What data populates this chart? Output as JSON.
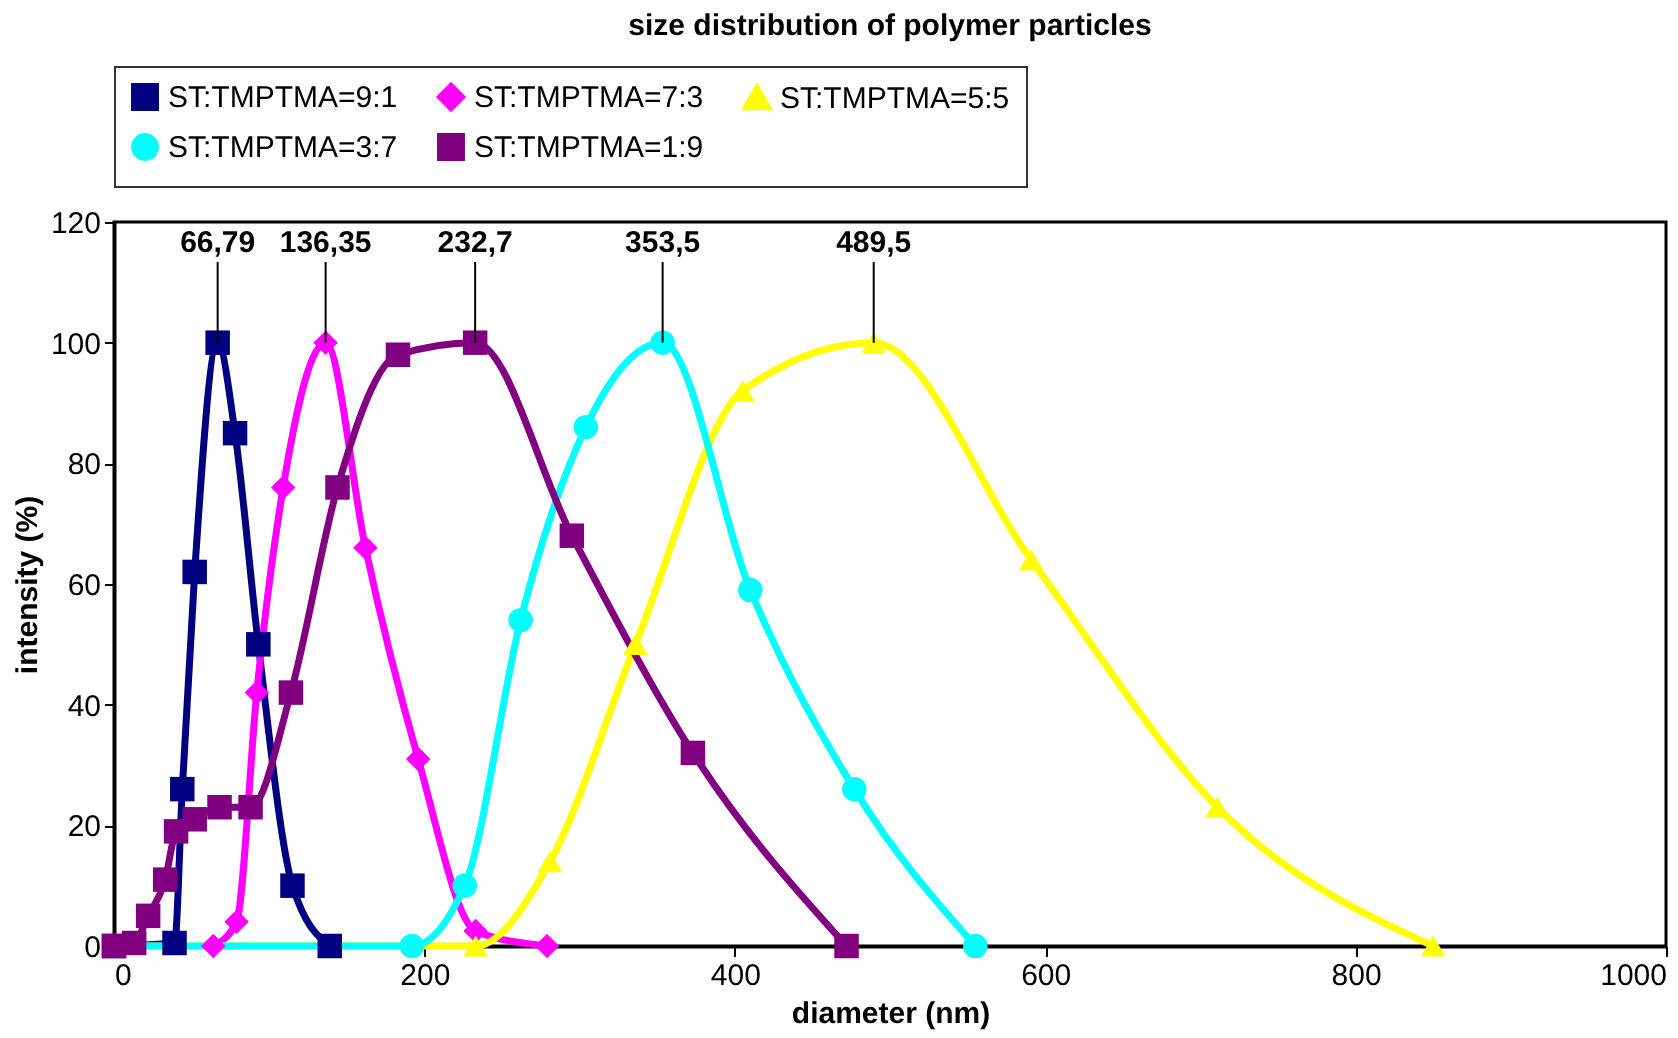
{
  "chart_data": {
    "type": "line",
    "title": "size distribution of polymer particles",
    "xlabel": "diameter (nm)",
    "ylabel": "intensity (%)",
    "xlim": [
      0,
      1000
    ],
    "xticks": [
      0,
      200,
      400,
      600,
      800,
      1000
    ],
    "ylim": [
      0,
      120
    ],
    "yticks": [
      0,
      20,
      40,
      60,
      80,
      100,
      120
    ],
    "grid": false,
    "legend": "top",
    "series": [
      {
        "name": "ST:TMPTMA=9:1",
        "color": "#000080",
        "marker": "square",
        "x": [
          0,
          39,
          44,
          52,
          66.79,
          78,
          93,
          115,
          139
        ],
        "values": [
          0,
          0.5,
          26,
          62,
          100,
          85,
          50,
          10,
          0
        ]
      },
      {
        "name": "ST:TMPTMA=7:3",
        "color": "#ff00ff",
        "marker": "diamond",
        "x": [
          64,
          79,
          92,
          109,
          136.35,
          162,
          196,
          233,
          279
        ],
        "values": [
          0,
          4,
          42,
          76,
          100,
          66,
          31,
          2.5,
          0
        ]
      },
      {
        "name": "ST:TMPTMA=5:5",
        "color": "#ffff00",
        "marker": "triangle",
        "x": [
          0,
          233,
          281,
          336,
          405,
          489.5,
          591,
          711,
          850
        ],
        "values": [
          0,
          0,
          14,
          50,
          92,
          100,
          64,
          23,
          0
        ]
      },
      {
        "name": "ST:TMPTMA=3:7",
        "color": "#00ffff",
        "marker": "circle",
        "x": [
          0,
          192,
          226,
          262,
          304,
          353.5,
          410,
          477,
          555
        ],
        "values": [
          0,
          0,
          10,
          54,
          86,
          100,
          59,
          26,
          0
        ]
      },
      {
        "name": "ST:TMPTMA=1:9",
        "color": "#800080",
        "marker": "square",
        "x": [
          0,
          13,
          22,
          33,
          40,
          52,
          68,
          88,
          114,
          144,
          183,
          232.7,
          295,
          373,
          472
        ],
        "values": [
          0,
          0.5,
          5,
          11,
          19,
          21,
          23,
          23,
          42,
          76,
          98,
          100,
          68,
          32,
          0
        ]
      }
    ],
    "annotations": [
      {
        "text": "66,79",
        "x": 66.79,
        "y": 100
      },
      {
        "text": "136,35",
        "x": 136.35,
        "y": 100
      },
      {
        "text": "232,7",
        "x": 232.7,
        "y": 100
      },
      {
        "text": "353,5",
        "x": 353.5,
        "y": 100
      },
      {
        "text": "489,5",
        "x": 489.5,
        "y": 100
      }
    ]
  }
}
